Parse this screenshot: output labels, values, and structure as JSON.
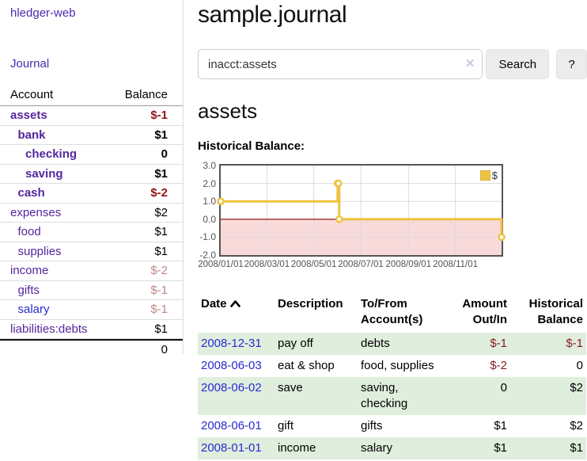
{
  "sidebar": {
    "brand": "hledger-web",
    "journal_link": "Journal",
    "accounts_table": {
      "account_header": "Account",
      "balance_header": "Balance",
      "rows": [
        {
          "name": "assets",
          "balance": "$-1",
          "depth": 1,
          "bold": true,
          "neg": "strong"
        },
        {
          "name": "bank",
          "balance": "$1",
          "depth": 2,
          "bold": true,
          "neg": ""
        },
        {
          "name": "checking",
          "balance": "0",
          "depth": 3,
          "bold": true,
          "neg": ""
        },
        {
          "name": "saving",
          "balance": "$1",
          "depth": 3,
          "bold": true,
          "neg": ""
        },
        {
          "name": "cash",
          "balance": "$-2",
          "depth": 2,
          "bold": true,
          "neg": "strong"
        },
        {
          "name": "expenses",
          "balance": "$2",
          "depth": 1,
          "bold": false,
          "neg": ""
        },
        {
          "name": "food",
          "balance": "$1",
          "depth": 2,
          "bold": false,
          "neg": ""
        },
        {
          "name": "supplies",
          "balance": "$1",
          "depth": 2,
          "bold": false,
          "neg": ""
        },
        {
          "name": "income",
          "balance": "$-2",
          "depth": 1,
          "bold": false,
          "neg": "faded"
        },
        {
          "name": "gifts",
          "balance": "$-1",
          "depth": 2,
          "bold": false,
          "neg": "faded"
        },
        {
          "name": "salary",
          "balance": "$-1",
          "depth": 2,
          "bold": false,
          "neg": "faded",
          "blue": true
        },
        {
          "name": "liabilities:debts",
          "balance": "$1",
          "depth": 1,
          "bold": false,
          "neg": ""
        }
      ],
      "total": "0"
    }
  },
  "main": {
    "title": "sample.journal",
    "search": {
      "value": "inacct:assets",
      "clear_icon": "✕",
      "button_label": "Search",
      "help_label": "?"
    },
    "account_heading": "assets",
    "chart_label": "Historical Balance:",
    "register_table": {
      "headers": {
        "date": "Date",
        "description": "Description",
        "accounts": "To/From Account(s)",
        "amount": "Amount Out/In",
        "balance": "Historical Balance"
      },
      "rows": [
        {
          "date": "2008-12-31",
          "description": "pay off",
          "accounts": "debts",
          "amount": "$-1",
          "amount_neg": true,
          "balance": "$-1",
          "balance_neg": true,
          "green": true
        },
        {
          "date": "2008-06-03",
          "description": "eat & shop",
          "accounts": "food, supplies",
          "amount": "$-2",
          "amount_neg": true,
          "balance": "0",
          "balance_neg": false,
          "green": false
        },
        {
          "date": "2008-06-02",
          "description": "save",
          "accounts": "saving, checking",
          "amount": "0",
          "amount_neg": false,
          "balance": "$2",
          "balance_neg": false,
          "green": true
        },
        {
          "date": "2008-06-01",
          "description": "gift",
          "accounts": "gifts",
          "amount": "$1",
          "amount_neg": false,
          "balance": "$2",
          "balance_neg": false,
          "green": false
        },
        {
          "date": "2008-01-01",
          "description": "income",
          "accounts": "salary",
          "amount": "$1",
          "amount_neg": false,
          "balance": "$1",
          "balance_neg": false,
          "green": true
        }
      ]
    }
  },
  "chart_data": {
    "type": "line",
    "title": "Historical Balance of assets",
    "step": true,
    "series": [
      {
        "name": "$",
        "color": "#edc240",
        "points": [
          [
            "2008-01-01",
            1
          ],
          [
            "2008-06-01",
            2
          ],
          [
            "2008-06-02",
            2
          ],
          [
            "2008-06-03",
            0
          ],
          [
            "2008-12-31",
            -1
          ]
        ]
      }
    ],
    "xlim": [
      "2008-01-01",
      "2008-12-31"
    ],
    "ylim": [
      -2,
      3
    ],
    "y_ticks": [
      3.0,
      2.0,
      1.0,
      0.0,
      -1.0,
      -2.0
    ],
    "x_ticks": [
      "2008/01/01",
      "2008/03/01",
      "2008/05/01",
      "2008/07/01",
      "2008/09/01",
      "2008/11/01"
    ],
    "grid": true,
    "legend_position": "top-right",
    "legend_label": "$",
    "colors": {
      "line": "#edc240",
      "marker_fill": "#ffffff",
      "negative_region": "#f9dada",
      "zero_line": "#8b0000",
      "grid_line": "#dcdcdc",
      "plot_border": "#545454",
      "tick_text": "#545454"
    }
  }
}
